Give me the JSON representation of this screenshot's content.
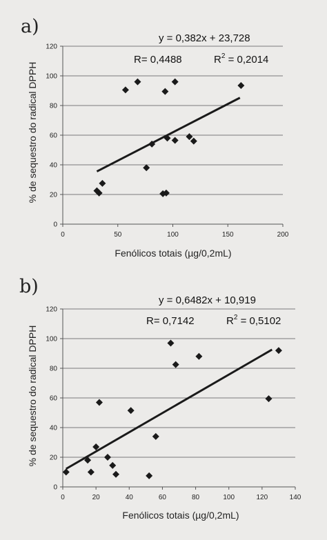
{
  "chart_data": [
    {
      "type": "scatter",
      "panel_label": "a)",
      "xlabel": "Fenólicos totais (µg/0,2mL)",
      "ylabel": "% de sequestro do radical DPPH",
      "xlim": [
        0,
        200
      ],
      "ylim": [
        0,
        120
      ],
      "xticks": [
        "0",
        "50",
        "100",
        "150",
        "200"
      ],
      "yticks": [
        "0",
        "20",
        "40",
        "60",
        "80",
        "100",
        "120"
      ],
      "grid": "horizontal",
      "annotations": {
        "equation": "y = 0,382x + 23,728",
        "r": "R= 0,4488",
        "r2_prefix": "R",
        "r2_exp": "2",
        "r2_value": " = 0,2014"
      },
      "trendline": {
        "slope": 0.382,
        "intercept": 23.728,
        "x_range": [
          31,
          161
        ]
      },
      "points": [
        {
          "x": 31,
          "y": 22.5
        },
        {
          "x": 33,
          "y": 21
        },
        {
          "x": 36,
          "y": 27.5
        },
        {
          "x": 57,
          "y": 90.5
        },
        {
          "x": 68,
          "y": 96
        },
        {
          "x": 76,
          "y": 38
        },
        {
          "x": 81,
          "y": 54
        },
        {
          "x": 91,
          "y": 20.5
        },
        {
          "x": 93,
          "y": 89.5
        },
        {
          "x": 94,
          "y": 21
        },
        {
          "x": 95,
          "y": 58
        },
        {
          "x": 102,
          "y": 56.5
        },
        {
          "x": 102,
          "y": 96
        },
        {
          "x": 115,
          "y": 59
        },
        {
          "x": 119,
          "y": 56
        },
        {
          "x": 162,
          "y": 93.5
        }
      ]
    },
    {
      "type": "scatter",
      "panel_label": "b)",
      "xlabel": "Fenólicos totais (µg/0,2mL)",
      "ylabel": "% de sequestro do radical DPPH",
      "xlim": [
        0,
        140
      ],
      "ylim": [
        0,
        120
      ],
      "xticks": [
        "0",
        "20",
        "40",
        "60",
        "80",
        "100",
        "120",
        "140"
      ],
      "yticks": [
        "0",
        "20",
        "40",
        "60",
        "80",
        "100",
        "120"
      ],
      "grid": "horizontal",
      "annotations": {
        "equation": "y = 0,6482x + 10,919",
        "r": "R= 0,7142",
        "r2_prefix": "R",
        "r2_exp": "2",
        "r2_value": " = 0,5102"
      },
      "trendline": {
        "slope": 0.6482,
        "intercept": 10.919,
        "x_range": [
          2,
          126
        ]
      },
      "points": [
        {
          "x": 2,
          "y": 10
        },
        {
          "x": 15,
          "y": 18
        },
        {
          "x": 17,
          "y": 10
        },
        {
          "x": 20,
          "y": 27
        },
        {
          "x": 22,
          "y": 57
        },
        {
          "x": 27,
          "y": 20
        },
        {
          "x": 30,
          "y": 14.5
        },
        {
          "x": 32,
          "y": 8.5
        },
        {
          "x": 41,
          "y": 51.5
        },
        {
          "x": 52,
          "y": 7.5
        },
        {
          "x": 56,
          "y": 34
        },
        {
          "x": 65,
          "y": 97
        },
        {
          "x": 68,
          "y": 82.5
        },
        {
          "x": 82,
          "y": 88
        },
        {
          "x": 124,
          "y": 59.5
        },
        {
          "x": 130,
          "y": 92
        }
      ]
    }
  ]
}
